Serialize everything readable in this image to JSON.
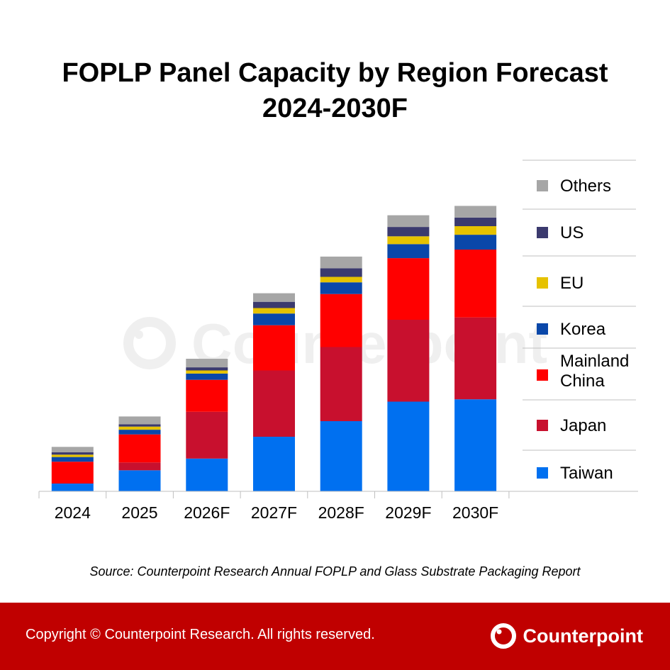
{
  "title_line1": "FOPLP Panel Capacity by Region Forecast",
  "title_line2": "2024-2030F",
  "source": "Source: Counterpoint Research Annual FOPLP and Glass Substrate Packaging Report",
  "copyright": "Copyright © Counterpoint Research. All rights reserved.",
  "brand": "Counterpoint",
  "watermark": "Counterpoint",
  "chart_data": {
    "type": "bar",
    "stacked": true,
    "categories": [
      "2024",
      "2025",
      "2026F",
      "2027F",
      "2028F",
      "2029F",
      "2030F"
    ],
    "series": [
      {
        "name": "Taiwan",
        "color": "#0070f0",
        "values": [
          10,
          27,
          42,
          70,
          90,
          115,
          118
        ]
      },
      {
        "name": "Japan",
        "color": "#c8102e",
        "values": [
          0,
          10,
          60,
          85,
          95,
          105,
          105
        ]
      },
      {
        "name": "Mainland China",
        "color": "#ff0000",
        "values": [
          28,
          36,
          41,
          58,
          68,
          79,
          87
        ]
      },
      {
        "name": "Korea",
        "color": "#0a47a9",
        "values": [
          6,
          6,
          8,
          15,
          15,
          18,
          19
        ]
      },
      {
        "name": "EU",
        "color": "#e6c200",
        "values": [
          3,
          4,
          4,
          7,
          7,
          10,
          11
        ]
      },
      {
        "name": "US",
        "color": "#3b3a6e",
        "values": [
          3,
          3,
          4,
          8,
          11,
          12,
          11
        ]
      },
      {
        "name": "Others",
        "color": "#a6a6a6",
        "values": [
          7,
          10,
          11,
          11,
          15,
          15,
          15
        ]
      }
    ],
    "legend_order": [
      "Others",
      "US",
      "EU",
      "Korea",
      "Mainland China",
      "Japan",
      "Taiwan"
    ],
    "legend_labels": {
      "Others": [
        "Others"
      ],
      "US": [
        "US"
      ],
      "EU": [
        "EU"
      ],
      "Korea": [
        "Korea"
      ],
      "Mainland China": [
        "Mainland",
        "China"
      ],
      "Japan": [
        "Japan"
      ],
      "Taiwan": [
        "Taiwan"
      ]
    },
    "legend_position": "right",
    "gridlines": false,
    "ylim": [
      0,
      400
    ]
  }
}
